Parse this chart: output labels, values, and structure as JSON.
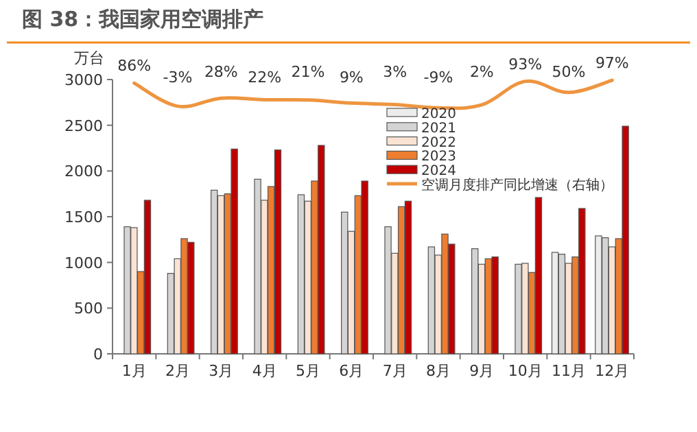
{
  "chart_data": {
    "type": "bar",
    "title": "图 38：我国家用空调排产",
    "ylabel": "万台",
    "categories": [
      "1月",
      "2月",
      "3月",
      "4月",
      "5月",
      "6月",
      "7月",
      "8月",
      "9月",
      "10月",
      "11月",
      "12月"
    ],
    "series": [
      {
        "name": "2020",
        "color": "#ececec",
        "values": [
          null,
          null,
          null,
          null,
          null,
          null,
          null,
          null,
          null,
          null,
          1110,
          1290
        ]
      },
      {
        "name": "2021",
        "color": "#d4d4d4",
        "values": [
          1390,
          880,
          1790,
          1910,
          1740,
          1550,
          1390,
          1170,
          1150,
          980,
          1090,
          1270
        ]
      },
      {
        "name": "2022",
        "color": "#fbe3d4",
        "values": [
          1380,
          1040,
          1730,
          1680,
          1670,
          1340,
          1100,
          1080,
          980,
          990,
          990,
          1170
        ]
      },
      {
        "name": "2023",
        "color": "#ed7d31",
        "values": [
          900,
          1260,
          1750,
          1830,
          1890,
          1730,
          1610,
          1310,
          1040,
          890,
          1060,
          1260
        ]
      },
      {
        "name": "2024",
        "color": "#c00000",
        "values": [
          1680,
          1220,
          2240,
          2230,
          2280,
          1890,
          1670,
          1200,
          1060,
          1710,
          1590,
          2490
        ]
      },
      {
        "name": "空调月度排产同比增速（右轴）",
        "type": "line",
        "axis": "y2",
        "color": "#ee9540",
        "values": [
          86,
          -3,
          28,
          22,
          21,
          9,
          3,
          -9,
          2,
          93,
          50,
          97
        ],
        "value_labels": [
          "86%",
          "-3%",
          "28%",
          "22%",
          "21%",
          "9%",
          "3%",
          "-9%",
          "2%",
          "93%",
          "50%",
          "97%"
        ]
      }
    ],
    "ylim": [
      0,
      3000
    ],
    "yticks": [
      0,
      500,
      1000,
      1500,
      2000,
      2500,
      3000
    ],
    "y2lim": [
      -960,
      100
    ],
    "legend": "right"
  }
}
